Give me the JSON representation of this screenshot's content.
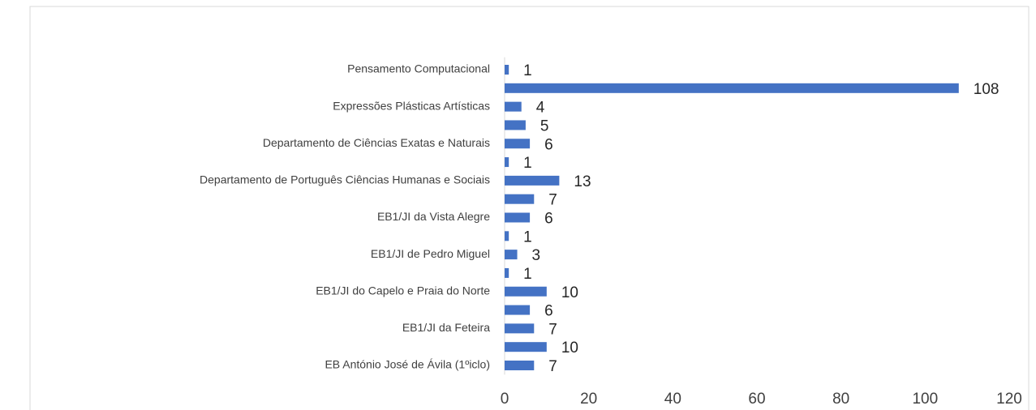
{
  "chart_data": {
    "type": "barh",
    "categories": [
      "Pensamento Computacional",
      null,
      "Expressões Plásticas Artísticas",
      null,
      "Departamento de Ciências Exatas e Naturais",
      null,
      "Departamento de Português Ciências Humanas e Sociais",
      null,
      "EB1/JI da Vista Alegre",
      null,
      "EB1/JI de Pedro Miguel",
      null,
      "EB1/JI do Capelo e Praia do Norte",
      null,
      "EB1/JI da Feteira",
      null,
      "EB António José de Ávila (1ºiclo)"
    ],
    "values": [
      1,
      108,
      4,
      5,
      6,
      1,
      13,
      7,
      6,
      1,
      3,
      1,
      10,
      6,
      7,
      10,
      7
    ],
    "color": "#4472c4",
    "xlim": [
      0,
      120
    ],
    "xticks": [
      0,
      20,
      40,
      60,
      80,
      100,
      120
    ],
    "grid": false
  }
}
